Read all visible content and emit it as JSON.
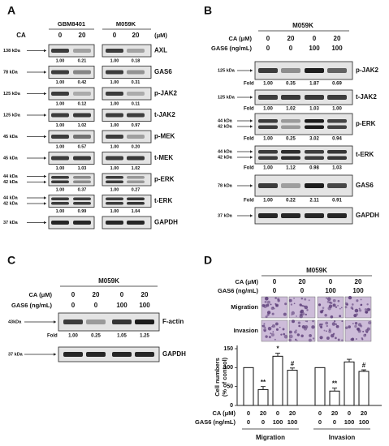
{
  "panels": {
    "A": {
      "label": "A",
      "cell_lines": [
        "GBM8401",
        "M059K"
      ],
      "ca_label": "CA",
      "doses": [
        0,
        20,
        0,
        20
      ],
      "unit": "(μM)",
      "rows": [
        {
          "kda": [
            "138 kDa"
          ],
          "name": "AXL",
          "fold": [
            "1.00",
            "0.21",
            "1.00",
            "0.18"
          ]
        },
        {
          "kda": [
            "78 kDa"
          ],
          "name": "GAS6",
          "fold": [
            "1.00",
            "0.42",
            "1.00",
            "0.31"
          ]
        },
        {
          "kda": [
            "125 kDa"
          ],
          "name": "p-JAK2",
          "fold": [
            "1.00",
            "0.12",
            "1.00",
            "0.11"
          ]
        },
        {
          "kda": [
            "125 kDa"
          ],
          "name": "t-JAK2",
          "fold": [
            "1.00",
            "1.02",
            "1.00",
            "0.97"
          ]
        },
        {
          "kda": [
            "45 kDa"
          ],
          "name": "p-MEK",
          "fold": [
            "1.00",
            "0.57",
            "1.00",
            "0.20"
          ]
        },
        {
          "kda": [
            "45 kDa"
          ],
          "name": "t-MEK",
          "fold": [
            "1.00",
            "1.03",
            "1.00",
            "1.02"
          ]
        },
        {
          "kda": [
            "44 kDa",
            "42 kDa"
          ],
          "name": "p-ERK",
          "fold": [
            "1.00",
            "0.37",
            "1.00",
            "0.27"
          ]
        },
        {
          "kda": [
            "44 kDa",
            "42 kDa"
          ],
          "name": "t-ERK",
          "fold": [
            "1.00",
            "0.99",
            "1.00",
            "1.04"
          ]
        },
        {
          "kda": [
            "37 kDa"
          ],
          "name": "GAPDH"
        }
      ]
    },
    "B": {
      "label": "B",
      "cell_line": "M059K",
      "ca_label": "CA (μM)",
      "ca": [
        0,
        20,
        0,
        20
      ],
      "gas6_label": "GAS6 (ng/mL)",
      "gas6": [
        0,
        0,
        100,
        100
      ],
      "fold_label": "Fold",
      "rows": [
        {
          "kda": [
            "125 kDa"
          ],
          "name": "p-JAK2",
          "fold": [
            "1.00",
            "0.35",
            "1.87",
            "0.69"
          ]
        },
        {
          "kda": [
            "125 kDa"
          ],
          "name": "t-JAK2",
          "fold": [
            "1.00",
            "1.02",
            "1.03",
            "1.00"
          ]
        },
        {
          "kda": [
            "44 kDa",
            "42 kDa"
          ],
          "name": "p-ERK",
          "fold": [
            "1.00",
            "0.25",
            "3.02",
            "0.94"
          ]
        },
        {
          "kda": [
            "44 kDa",
            "42 kDa"
          ],
          "name": "t-ERK",
          "fold": [
            "1.00",
            "1.12",
            "0.98",
            "1.03"
          ]
        },
        {
          "kda": [
            "78 kDa"
          ],
          "name": "GAS6",
          "fold": [
            "1.00",
            "0.22",
            "2.11",
            "0.91"
          ]
        },
        {
          "kda": [
            "37 kDa"
          ],
          "name": "GAPDH"
        }
      ]
    },
    "C": {
      "label": "C",
      "cell_line": "M059K",
      "ca_label": "CA (μM)",
      "ca": [
        0,
        20,
        0,
        20
      ],
      "gas6_label": "GAS6 (ng/mL)",
      "gas6": [
        0,
        0,
        100,
        100
      ],
      "fold_label": "Fold",
      "rows": [
        {
          "kda": [
            "43kDa"
          ],
          "name": "F-actin",
          "fold": [
            "1.00",
            "0.25",
            "1.05",
            "1.25"
          ]
        },
        {
          "kda": [
            "37 kDa"
          ],
          "name": "GAPDH"
        }
      ]
    },
    "D": {
      "label": "D",
      "cell_line": "M059K",
      "ca_label": "CA (μM)",
      "ca": [
        0,
        20,
        0,
        20
      ],
      "gas6_label": "GAS6 (ng/mL)",
      "gas6": [
        0,
        0,
        100,
        100
      ],
      "image_rows": [
        "Migration",
        "Invasion"
      ]
    }
  },
  "chart_data": {
    "type": "bar",
    "ylabel": [
      "Cell numbers",
      "(% of control)"
    ],
    "ylim": [
      0,
      150
    ],
    "yticks": [
      0,
      50,
      100,
      150
    ],
    "values": [
      100,
      42,
      130,
      93,
      100,
      38,
      115,
      90
    ],
    "errors": [
      0,
      8,
      8,
      6,
      0,
      8,
      7,
      4
    ],
    "annotations": [
      null,
      "**",
      "*",
      "#",
      null,
      "**",
      null,
      "#"
    ],
    "color": "#ffffff",
    "ca_label": "CA (μM)",
    "ca": [
      0,
      20,
      0,
      20,
      0,
      20,
      0,
      20
    ],
    "gas6_label": "GAS6 (ng/mL)",
    "gas6": [
      0,
      0,
      100,
      100,
      0,
      0,
      100,
      100
    ],
    "groups": [
      "Migration",
      "Invasion"
    ]
  }
}
